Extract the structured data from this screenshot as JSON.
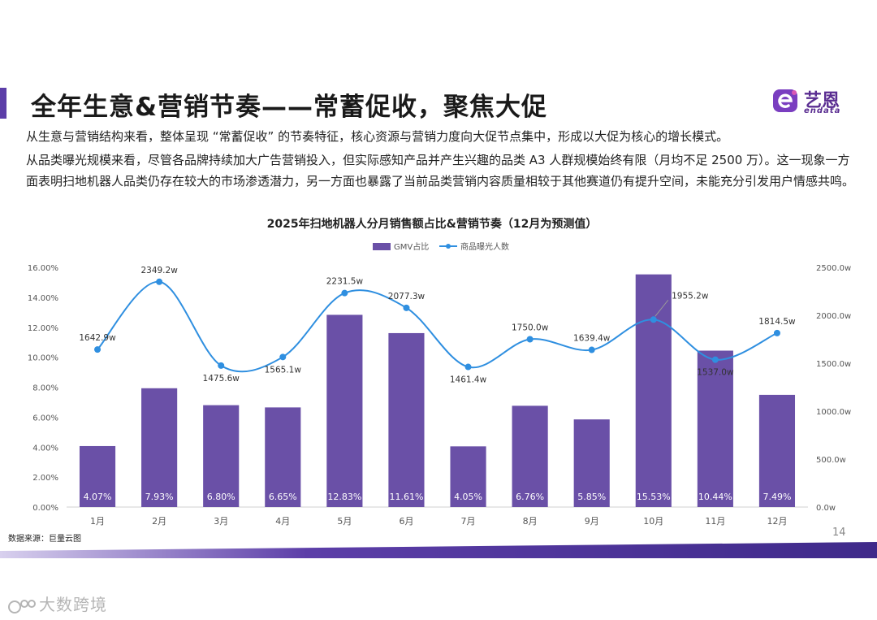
{
  "header": {
    "title": "全年生意&营销节奏——常蓄促收，聚焦大促",
    "logo_cn": "艺恩",
    "logo_en": "endata"
  },
  "body": {
    "para1": "从生意与营销结构来看，整体呈现 “常蓄促收” 的节奏特征，核心资源与营销力度向大促节点集中，形成以大促为核心的增长模式。",
    "para2": "从品类曝光规模来看，尽管各品牌持续加大广告营销投入，但实际感知产品并产生兴趣的品类 A3 人群规模始终有限（月均不足 2500 万）。这一现象一方面表明扫地机器人品类仍存在较大的市场渗透潜力，另一方面也暴露了当前品类营销内容质量相较于其他赛道仍有提升空间，未能充分引发用户情感共鸣。"
  },
  "footer": {
    "source": "数据来源：巨量云图",
    "page_number": "14",
    "watermark": "大数跨境"
  },
  "colors": {
    "bar": "#6a50a7",
    "line": "#2f8fe0",
    "accent": "#5c3ea8"
  },
  "chart_data": {
    "type": "bar+line",
    "title": "2025年扫地机器人分月销售额占比&营销节奏（12月为预测值）",
    "categories": [
      "1月",
      "2月",
      "3月",
      "4月",
      "5月",
      "6月",
      "7月",
      "8月",
      "9月",
      "10月",
      "11月",
      "12月"
    ],
    "series": [
      {
        "name": "GMV占比",
        "type": "bar",
        "axis": "left",
        "values": [
          4.07,
          7.93,
          6.8,
          6.65,
          12.83,
          11.61,
          4.05,
          6.76,
          5.85,
          15.53,
          10.44,
          7.49
        ],
        "labels": [
          "4.07%",
          "7.93%",
          "6.80%",
          "6.65%",
          "12.83%",
          "11.61%",
          "4.05%",
          "6.76%",
          "5.85%",
          "15.53%",
          "10.44%",
          "7.49%"
        ]
      },
      {
        "name": "商品曝光人数",
        "type": "line",
        "axis": "right",
        "values": [
          1642.9,
          2349.2,
          1475.6,
          1565.1,
          2231.5,
          2077.3,
          1461.4,
          1750.0,
          1639.4,
          1955.2,
          1537.0,
          1814.5
        ],
        "labels": [
          "1642.9w",
          "2349.2w",
          "1475.6w",
          "1565.1w",
          "2231.5w",
          "2077.3w",
          "1461.4w",
          "1750.0w",
          "1639.4w",
          "1955.2w",
          "1537.0w",
          "1814.5w"
        ]
      }
    ],
    "y_left": {
      "range": [
        0,
        16
      ],
      "ticks": [
        "0.00%",
        "2.00%",
        "4.00%",
        "6.00%",
        "8.00%",
        "10.00%",
        "12.00%",
        "14.00%",
        "16.00%"
      ]
    },
    "y_right": {
      "range": [
        0,
        2500
      ],
      "ticks": [
        "0.0w",
        "500.0w",
        "1000.0w",
        "1500.0w",
        "2000.0w",
        "2500.0w"
      ]
    },
    "legend_position": "top-center"
  }
}
